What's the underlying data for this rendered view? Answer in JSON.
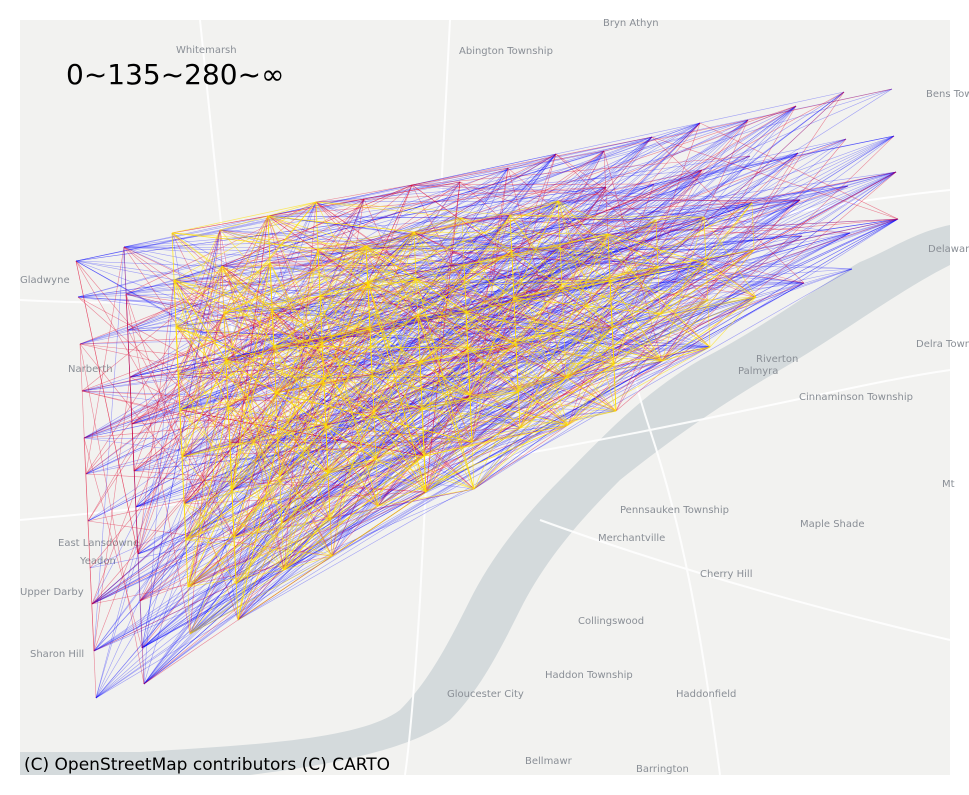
{
  "legend": {
    "thresholds_label": "0~135~280~∞"
  },
  "attribution": "(C) OpenStreetMap contributors (C) CARTO",
  "colors": {
    "basemap_land": "#f2f2f0",
    "basemap_water": "#d4dadc",
    "basemap_road": "#ffffff",
    "band_low": "#ffe000",
    "band_mid": "#e0002a",
    "band_high": "#0000ff"
  },
  "place_labels": [
    "Bryn Athyn",
    "Whitemarsh",
    "Abington Township",
    "Bens Tow",
    "Gladwyne",
    "Narberth",
    "Riverton",
    "Palmyra",
    "Delra Towns",
    "Cinnaminson Township",
    "Delaware",
    "Pennsauken Township",
    "Maple Shade",
    "Merchantville",
    "East Lansdowne",
    "Yeadon",
    "Upper Darby",
    "Cherry Hill",
    "Collingswood",
    "Sharon Hill",
    "Haddon Township",
    "Gloucester City",
    "Haddonfield",
    "Bellmawr",
    "Barrington",
    "Mt"
  ]
}
